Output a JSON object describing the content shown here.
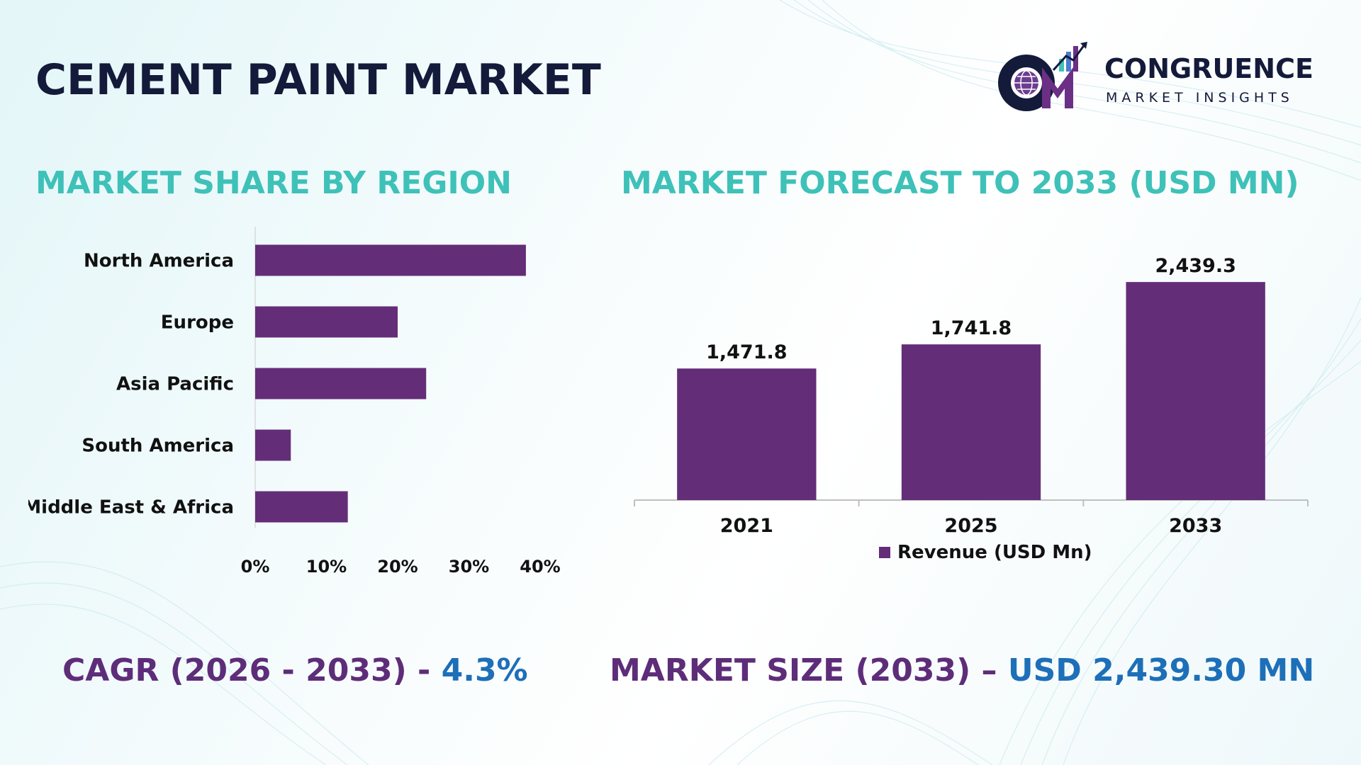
{
  "title": "CEMENT PAINT MARKET",
  "logo": {
    "name": "CONGRUENCE",
    "subtitle": "MARKET INSIGHTS",
    "mark_letters": "CMI"
  },
  "colors": {
    "bar": "#642d78",
    "heading_teal": "#3ec1b8",
    "stat_label": "#5e2d79",
    "stat_value": "#1d6fb8",
    "title": "#141a3a"
  },
  "region_section": {
    "heading": "MARKET SHARE BY REGION"
  },
  "forecast_section": {
    "heading": "MARKET FORECAST TO 2033 (USD MN)"
  },
  "chart_data": [
    {
      "type": "bar",
      "orientation": "horizontal",
      "title": "MARKET SHARE BY REGION",
      "categories": [
        "North America",
        "Europe",
        "Asia Pacific",
        "South America",
        "Middle East & Africa"
      ],
      "values": [
        38,
        20,
        24,
        5,
        13
      ],
      "unit": "%",
      "xlim": [
        0,
        40
      ],
      "xticks": [
        "0%",
        "10%",
        "20%",
        "30%",
        "40%"
      ],
      "grid": false,
      "legend": "none"
    },
    {
      "type": "bar",
      "orientation": "vertical",
      "title": "MARKET FORECAST TO 2033 (USD MN)",
      "categories": [
        "2021",
        "2025",
        "2033"
      ],
      "series": [
        {
          "name": "Revenue (USD Mn)",
          "values": [
            1471.8,
            1741.8,
            2439.3
          ],
          "labels": [
            "1,471.8",
            "1,741.8",
            "2,439.3"
          ]
        }
      ],
      "ylim": [
        0,
        2900
      ],
      "grid": false,
      "legend": "bottom-center"
    }
  ],
  "stats": {
    "cagr_label": "CAGR (2026 - 2033) - ",
    "cagr_value": "4.3%",
    "market_size_label": "MARKET SIZE (2033) – ",
    "market_size_value": "USD 2,439.30 MN"
  }
}
